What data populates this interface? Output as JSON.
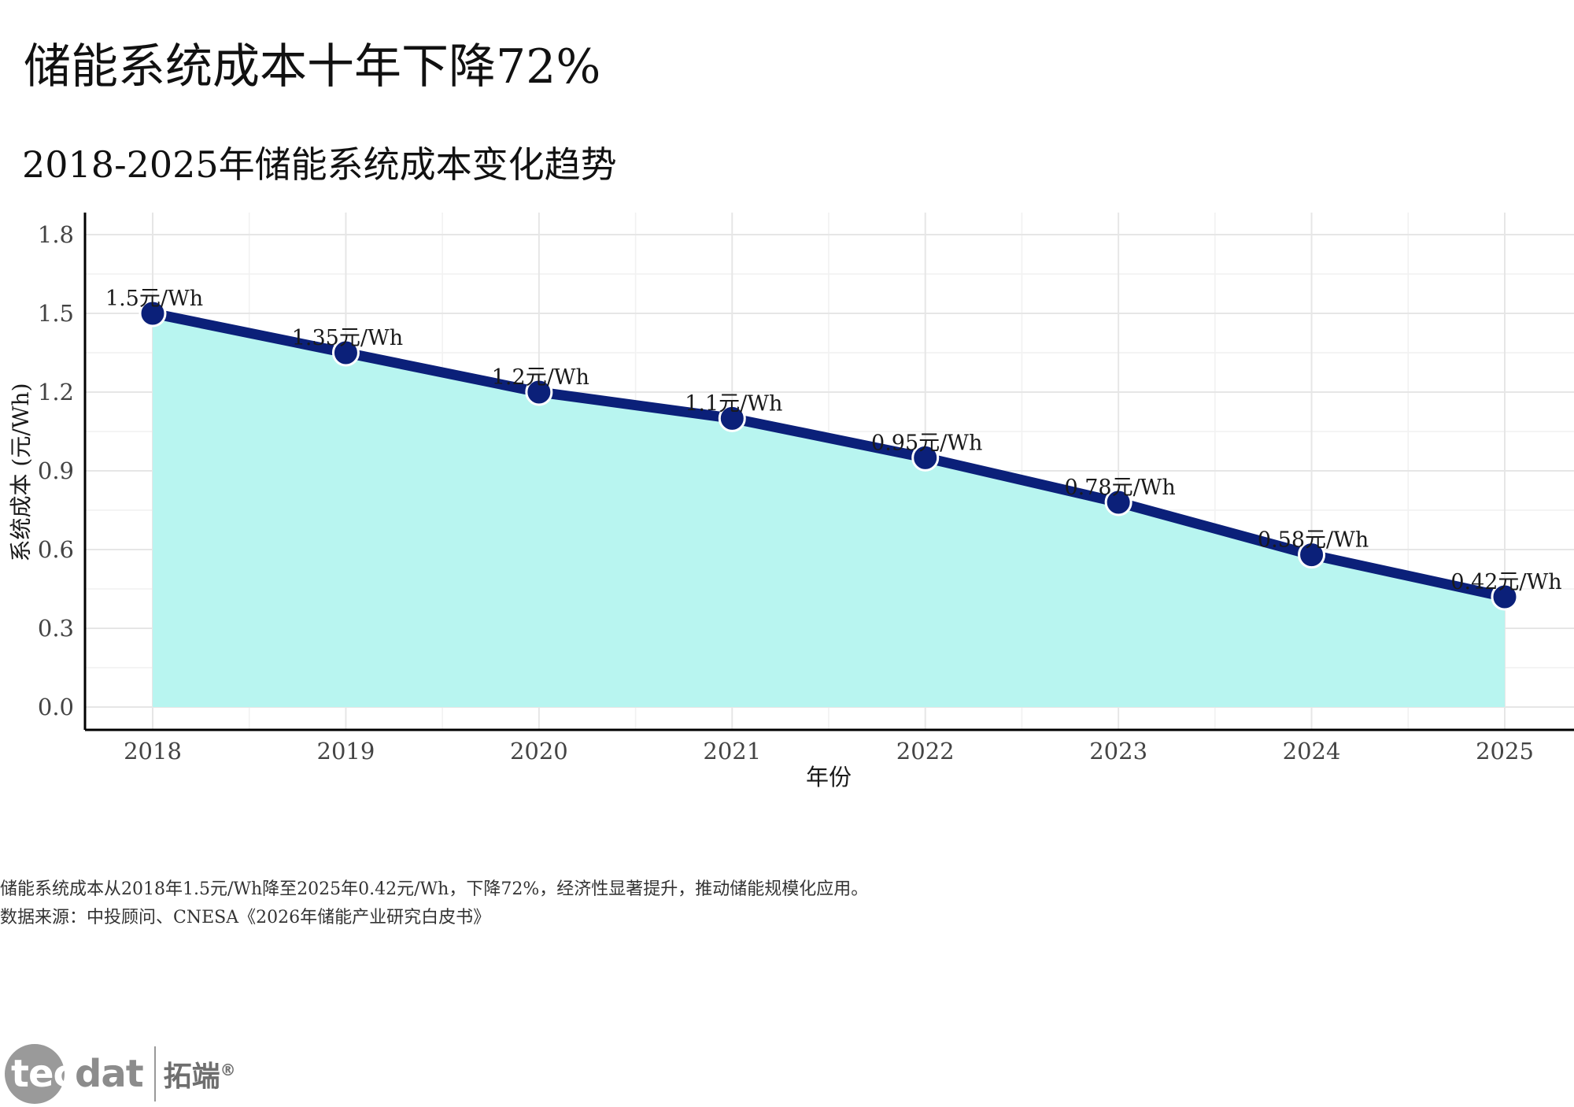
{
  "header": {
    "title": "储能系统成本十年下降72%",
    "subtitle": "2018-2025年储能系统成本变化趋势"
  },
  "chart_data": {
    "type": "area",
    "xlabel": "年份",
    "ylabel": "系统成本 (元/Wh)",
    "categories": [
      "2018",
      "2019",
      "2020",
      "2021",
      "2022",
      "2023",
      "2024",
      "2025"
    ],
    "values": [
      1.5,
      1.35,
      1.2,
      1.1,
      0.95,
      0.78,
      0.58,
      0.42
    ],
    "data_labels": [
      "1.5元/Wh",
      "1.35元/Wh",
      "1.2元/Wh",
      "1.1元/Wh",
      "0.95元/Wh",
      "0.78元/Wh",
      "0.58元/Wh",
      "0.42元/Wh"
    ],
    "ylim": [
      0,
      1.8
    ],
    "yticks": [
      0.0,
      0.3,
      0.6,
      0.9,
      1.2,
      1.5,
      1.8
    ],
    "ytick_labels": [
      "0.0",
      "0.3",
      "0.6",
      "0.9",
      "1.2",
      "1.5",
      "1.8"
    ],
    "grid": true,
    "colors": {
      "line": "#0b2079",
      "fill": "#b8f5f0",
      "marker_stroke": "#ffffff",
      "grid": "#e6e6e6"
    }
  },
  "caption": {
    "line1": "储能系统成本从2018年1.5元/Wh降至2025年0.42元/Wh，下降72%，经济性显著提升，推动储能规模化应用。",
    "line2": "数据来源：中投顾问、CNESA《2026年储能产业研究白皮书》"
  },
  "logo": {
    "text": "tecdat 拓端®"
  }
}
